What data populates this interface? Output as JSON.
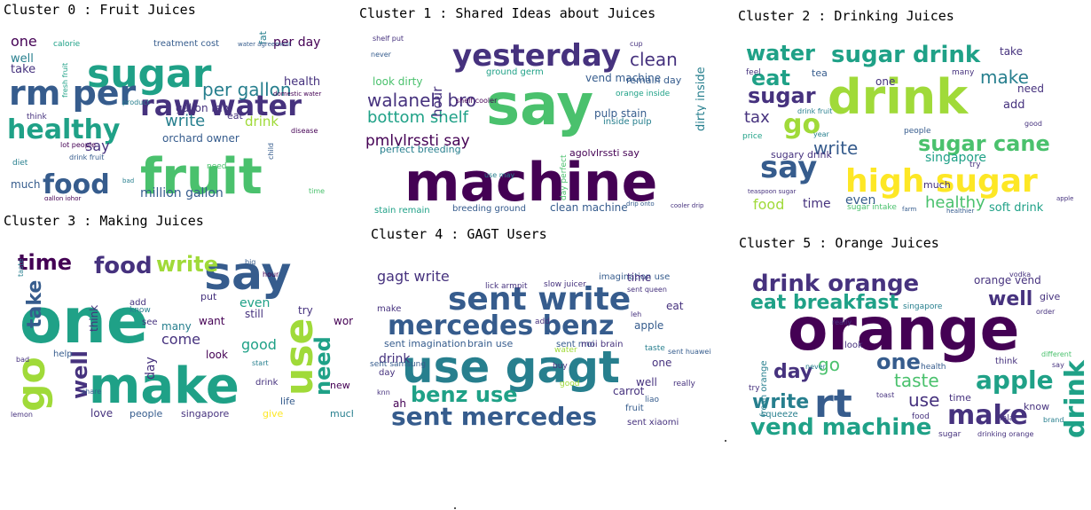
{
  "palette": [
    "#440154",
    "#46327e",
    "#365c8d",
    "#277f8e",
    "#1fa187",
    "#4ac16d",
    "#a0da39",
    "#fde725"
  ],
  "clusters": [
    {
      "title": "Cluster 0 : Fruit Juices",
      "words": [
        {
          "t": "fruit",
          "s": 56,
          "c": 5
        },
        {
          "t": "sugar",
          "s": 44,
          "c": 4
        },
        {
          "t": "rm per",
          "s": 38,
          "c": 2
        },
        {
          "t": "raw water",
          "s": 32,
          "c": 1
        },
        {
          "t": "food",
          "s": 30,
          "c": 2
        },
        {
          "t": "healthy",
          "s": 30,
          "c": 4
        },
        {
          "t": "per gallon",
          "s": 20,
          "c": 3
        },
        {
          "t": "million gallon",
          "s": 14,
          "c": 2
        },
        {
          "t": "write",
          "s": 18,
          "c": 3
        },
        {
          "t": "drink",
          "s": 15,
          "c": 6
        },
        {
          "t": "say",
          "s": 16,
          "c": 1
        },
        {
          "t": "orchard owner",
          "s": 12,
          "c": 2
        },
        {
          "t": "gallon raw",
          "s": 12,
          "c": 1
        },
        {
          "t": "per day",
          "s": 14,
          "c": 0
        },
        {
          "t": "one",
          "s": 16,
          "c": 0
        },
        {
          "t": "health",
          "s": 13,
          "c": 1
        },
        {
          "t": "well",
          "s": 13,
          "c": 3
        },
        {
          "t": "take",
          "s": 13,
          "c": 1
        },
        {
          "t": "much",
          "s": 12,
          "c": 2
        },
        {
          "t": "eat",
          "s": 11,
          "c": 1
        },
        {
          "t": "treatment cost",
          "s": 10,
          "c": 2
        },
        {
          "t": "need",
          "s": 9,
          "c": 5
        },
        {
          "t": "fat",
          "s": 11,
          "c": 3
        },
        {
          "t": "calorie",
          "s": 9,
          "c": 4
        },
        {
          "t": "think",
          "s": 9,
          "c": 1
        },
        {
          "t": "diet",
          "s": 9,
          "c": 3
        },
        {
          "t": "lot people",
          "s": 8,
          "c": 0
        },
        {
          "t": "drink fruit",
          "s": 8,
          "c": 2
        },
        {
          "t": "fresh fruit",
          "s": 8,
          "c": 4
        },
        {
          "t": "product",
          "s": 8,
          "c": 3
        },
        {
          "t": "time",
          "s": 8,
          "c": 5
        },
        {
          "t": "disease",
          "s": 8,
          "c": 0
        },
        {
          "t": "child",
          "s": 8,
          "c": 2
        },
        {
          "t": "water agreement",
          "s": 7,
          "c": 2
        },
        {
          "t": "domestic water",
          "s": 7,
          "c": 0
        },
        {
          "t": "gallon johor",
          "s": 7,
          "c": 0
        },
        {
          "t": "bad",
          "s": 7,
          "c": 3
        }
      ]
    },
    {
      "title": "Cluster 1 : Shared Ideas about Juices",
      "words": [
        {
          "t": "machine",
          "s": 60,
          "c": 0
        },
        {
          "t": "say",
          "s": 64,
          "c": 5
        },
        {
          "t": "yesterday",
          "s": 34,
          "c": 1
        },
        {
          "t": "walaneh bro",
          "s": 20,
          "c": 1
        },
        {
          "t": "bottom shelf",
          "s": 18,
          "c": 4
        },
        {
          "t": "pmlvlrssti say",
          "s": 17,
          "c": 0
        },
        {
          "t": "clean",
          "s": 20,
          "c": 1
        },
        {
          "t": "vend machine",
          "s": 12,
          "c": 2
        },
        {
          "t": "hour",
          "s": 15,
          "c": 1
        },
        {
          "t": "dirty inside",
          "s": 13,
          "c": 3
        },
        {
          "t": "pulp stain",
          "s": 12,
          "c": 2
        },
        {
          "t": "look dirty",
          "s": 12,
          "c": 5
        },
        {
          "t": "clean machine",
          "s": 12,
          "c": 2
        },
        {
          "t": "perfect breeding",
          "s": 11,
          "c": 3
        },
        {
          "t": "agolvlrssti say",
          "s": 11,
          "c": 0
        },
        {
          "t": "remain day",
          "s": 11,
          "c": 2
        },
        {
          "t": "inside pulp",
          "s": 10,
          "c": 3
        },
        {
          "t": "ground germ",
          "s": 10,
          "c": 4
        },
        {
          "t": "orange inside",
          "s": 9,
          "c": 4
        },
        {
          "t": "stain remain",
          "s": 10,
          "c": 4
        },
        {
          "t": "breeding ground",
          "s": 10,
          "c": 2
        },
        {
          "t": "day perfect",
          "s": 9,
          "c": 5
        },
        {
          "t": "shelf put",
          "s": 8,
          "c": 1
        },
        {
          "t": "cup",
          "s": 8,
          "c": 1
        },
        {
          "t": "shelf cooler",
          "s": 8,
          "c": 0
        },
        {
          "t": "never",
          "s": 8,
          "c": 2
        },
        {
          "t": "use may",
          "s": 8,
          "c": 3
        },
        {
          "t": "cooler drip",
          "s": 7,
          "c": 1
        },
        {
          "t": "drip onto",
          "s": 7,
          "c": 2
        }
      ]
    },
    {
      "title": "Cluster 2 : Drinking Juices",
      "words": [
        {
          "t": "drink",
          "s": 54,
          "c": 6
        },
        {
          "t": "high sugar",
          "s": 36,
          "c": 7
        },
        {
          "t": "sugar drink",
          "s": 26,
          "c": 4
        },
        {
          "t": "sugar cane",
          "s": 24,
          "c": 5
        },
        {
          "t": "water",
          "s": 24,
          "c": 4
        },
        {
          "t": "say",
          "s": 34,
          "c": 2
        },
        {
          "t": "go",
          "s": 30,
          "c": 6
        },
        {
          "t": "sugar",
          "s": 24,
          "c": 1
        },
        {
          "t": "eat",
          "s": 24,
          "c": 4
        },
        {
          "t": "write",
          "s": 20,
          "c": 2
        },
        {
          "t": "make",
          "s": 20,
          "c": 3
        },
        {
          "t": "healthy",
          "s": 18,
          "c": 5
        },
        {
          "t": "tax",
          "s": 18,
          "c": 1
        },
        {
          "t": "singapore",
          "s": 14,
          "c": 4
        },
        {
          "t": "food",
          "s": 16,
          "c": 6
        },
        {
          "t": "time",
          "s": 14,
          "c": 1
        },
        {
          "t": "soft drink",
          "s": 13,
          "c": 4
        },
        {
          "t": "even",
          "s": 14,
          "c": 2
        },
        {
          "t": "add",
          "s": 13,
          "c": 1
        },
        {
          "t": "need",
          "s": 12,
          "c": 1
        },
        {
          "t": "sugary drink",
          "s": 11,
          "c": 1
        },
        {
          "t": "one",
          "s": 12,
          "c": 1
        },
        {
          "t": "take",
          "s": 12,
          "c": 1
        },
        {
          "t": "much",
          "s": 11,
          "c": 1
        },
        {
          "t": "tea",
          "s": 11,
          "c": 2
        },
        {
          "t": "sugar intake",
          "s": 9,
          "c": 5
        },
        {
          "t": "price",
          "s": 9,
          "c": 4
        },
        {
          "t": "people",
          "s": 9,
          "c": 2
        },
        {
          "t": "drink fruit",
          "s": 8,
          "c": 3
        },
        {
          "t": "good",
          "s": 8,
          "c": 1
        },
        {
          "t": "try",
          "s": 9,
          "c": 1
        },
        {
          "t": "year",
          "s": 8,
          "c": 3
        },
        {
          "t": "feel",
          "s": 9,
          "c": 1
        },
        {
          "t": "many",
          "s": 9,
          "c": 1
        },
        {
          "t": "teaspoon sugar",
          "s": 7,
          "c": 1
        },
        {
          "t": "apple",
          "s": 7,
          "c": 1
        },
        {
          "t": "farm",
          "s": 7,
          "c": 2
        },
        {
          "t": "healthier",
          "s": 7,
          "c": 2
        }
      ]
    },
    {
      "title": "Cluster 3 : Making Juices",
      "words": [
        {
          "t": "one",
          "s": 70,
          "c": 4
        },
        {
          "t": "make",
          "s": 56,
          "c": 4
        },
        {
          "t": "say",
          "s": 52,
          "c": 2
        },
        {
          "t": "use",
          "s": 44,
          "c": 6
        },
        {
          "t": "go",
          "s": 44,
          "c": 6
        },
        {
          "t": "food",
          "s": 26,
          "c": 1
        },
        {
          "t": "time",
          "s": 24,
          "c": 0
        },
        {
          "t": "write",
          "s": 24,
          "c": 6
        },
        {
          "t": "well",
          "s": 24,
          "c": 1
        },
        {
          "t": "take",
          "s": 22,
          "c": 2
        },
        {
          "t": "need",
          "s": 24,
          "c": 4
        },
        {
          "t": "good",
          "s": 16,
          "c": 4
        },
        {
          "t": "come",
          "s": 16,
          "c": 1
        },
        {
          "t": "even",
          "s": 14,
          "c": 4
        },
        {
          "t": "still",
          "s": 12,
          "c": 1
        },
        {
          "t": "day",
          "s": 14,
          "c": 1
        },
        {
          "t": "look",
          "s": 12,
          "c": 0
        },
        {
          "t": "work",
          "s": 12,
          "c": 0
        },
        {
          "t": "think",
          "s": 12,
          "c": 1
        },
        {
          "t": "want",
          "s": 12,
          "c": 0
        },
        {
          "t": "many",
          "s": 12,
          "c": 3
        },
        {
          "t": "love",
          "s": 12,
          "c": 1
        },
        {
          "t": "people",
          "s": 11,
          "c": 2
        },
        {
          "t": "singapore",
          "s": 11,
          "c": 1
        },
        {
          "t": "give",
          "s": 11,
          "c": 7
        },
        {
          "t": "try",
          "s": 12,
          "c": 1
        },
        {
          "t": "put",
          "s": 11,
          "c": 1
        },
        {
          "t": "new",
          "s": 11,
          "c": 0
        },
        {
          "t": "much",
          "s": 11,
          "c": 3
        },
        {
          "t": "life",
          "s": 11,
          "c": 2
        },
        {
          "t": "drink",
          "s": 10,
          "c": 1
        },
        {
          "t": "know",
          "s": 9,
          "c": 3
        },
        {
          "t": "add",
          "s": 10,
          "c": 1
        },
        {
          "t": "see",
          "s": 10,
          "c": 1
        },
        {
          "t": "help",
          "s": 10,
          "c": 2
        },
        {
          "t": "lemon",
          "s": 8,
          "c": 1
        },
        {
          "t": "bad",
          "s": 8,
          "c": 1
        },
        {
          "t": "start",
          "s": 8,
          "c": 3
        },
        {
          "t": "share",
          "s": 8,
          "c": 2
        },
        {
          "t": "taste",
          "s": 8,
          "c": 3
        },
        {
          "t": "big",
          "s": 8,
          "c": 2
        },
        {
          "t": "hour",
          "s": 8,
          "c": 0
        }
      ]
    },
    {
      "title": "Cluster 4 : GAGT Users",
      "words": [
        {
          "t": "use gagt",
          "s": 50,
          "c": 3
        },
        {
          "t": "sent write",
          "s": 36,
          "c": 2
        },
        {
          "t": "mercedes benz",
          "s": 30,
          "c": 2
        },
        {
          "t": "sent mercedes",
          "s": 28,
          "c": 2
        },
        {
          "t": "benz use",
          "s": 24,
          "c": 4
        },
        {
          "t": "gagt write",
          "s": 16,
          "c": 1
        },
        {
          "t": "drink",
          "s": 14,
          "c": 1
        },
        {
          "t": "sent imagination",
          "s": 11,
          "c": 2
        },
        {
          "t": "brain use",
          "s": 11,
          "c": 2
        },
        {
          "t": "sent moi",
          "s": 10,
          "c": 2
        },
        {
          "t": "moi brain",
          "s": 10,
          "c": 1
        },
        {
          "t": "imagination use",
          "s": 10,
          "c": 2
        },
        {
          "t": "time",
          "s": 12,
          "c": 1
        },
        {
          "t": "apple",
          "s": 12,
          "c": 2
        },
        {
          "t": "carrot",
          "s": 12,
          "c": 1
        },
        {
          "t": "well",
          "s": 12,
          "c": 1
        },
        {
          "t": "ah",
          "s": 12,
          "c": 0
        },
        {
          "t": "eat",
          "s": 12,
          "c": 1
        },
        {
          "t": "one",
          "s": 12,
          "c": 1
        },
        {
          "t": "sent xiaomi",
          "s": 10,
          "c": 1
        },
        {
          "t": "fruit",
          "s": 10,
          "c": 2
        },
        {
          "t": "make",
          "s": 10,
          "c": 1
        },
        {
          "t": "day",
          "s": 10,
          "c": 1
        },
        {
          "t": "sent samsung",
          "s": 9,
          "c": 2
        },
        {
          "t": "slow juicer",
          "s": 9,
          "c": 1
        },
        {
          "t": "lick armpit",
          "s": 9,
          "c": 1
        },
        {
          "t": "taste",
          "s": 9,
          "c": 3
        },
        {
          "t": "really",
          "s": 9,
          "c": 1
        },
        {
          "t": "water",
          "s": 9,
          "c": 6
        },
        {
          "t": "liao",
          "s": 9,
          "c": 2
        },
        {
          "t": "add",
          "s": 9,
          "c": 1
        },
        {
          "t": "buy",
          "s": 9,
          "c": 1
        },
        {
          "t": "leh",
          "s": 8,
          "c": 1
        },
        {
          "t": "sent queen",
          "s": 8,
          "c": 1
        },
        {
          "t": "good",
          "s": 9,
          "c": 6
        },
        {
          "t": "knn",
          "s": 8,
          "c": 1
        },
        {
          "t": "sent huawei",
          "s": 8,
          "c": 2
        }
      ]
    },
    {
      "title": "Cluster 5 : Orange Juices",
      "words": [
        {
          "t": "orange",
          "s": 66,
          "c": 0
        },
        {
          "t": "rt",
          "s": 44,
          "c": 2
        },
        {
          "t": "drink orange",
          "s": 26,
          "c": 1
        },
        {
          "t": "make",
          "s": 30,
          "c": 1
        },
        {
          "t": "apple",
          "s": 28,
          "c": 4
        },
        {
          "t": "vend machine",
          "s": 26,
          "c": 4
        },
        {
          "t": "eat breakfast",
          "s": 22,
          "c": 4
        },
        {
          "t": "one",
          "s": 24,
          "c": 2
        },
        {
          "t": "drink",
          "s": 30,
          "c": 4
        },
        {
          "t": "well",
          "s": 22,
          "c": 1
        },
        {
          "t": "day",
          "s": 22,
          "c": 1
        },
        {
          "t": "write",
          "s": 22,
          "c": 3
        },
        {
          "t": "taste",
          "s": 20,
          "c": 5
        },
        {
          "t": "use",
          "s": 20,
          "c": 1
        },
        {
          "t": "go",
          "s": 20,
          "c": 5
        },
        {
          "t": "orange vend",
          "s": 12,
          "c": 1
        },
        {
          "t": "give",
          "s": 11,
          "c": 1
        },
        {
          "t": "fresh orange",
          "s": 10,
          "c": 3
        },
        {
          "t": "know",
          "s": 11,
          "c": 1
        },
        {
          "t": "look",
          "s": 10,
          "c": 1
        },
        {
          "t": "time",
          "s": 11,
          "c": 1
        },
        {
          "t": "squeeze",
          "s": 10,
          "c": 3
        },
        {
          "t": "think",
          "s": 10,
          "c": 1
        },
        {
          "t": "singapore",
          "s": 9,
          "c": 3
        },
        {
          "t": "halal",
          "s": 9,
          "c": 1
        },
        {
          "t": "food",
          "s": 9,
          "c": 1
        },
        {
          "t": "try",
          "s": 9,
          "c": 1
        },
        {
          "t": "sugar",
          "s": 9,
          "c": 1
        },
        {
          "t": "health",
          "s": 9,
          "c": 2
        },
        {
          "t": "drinking orange",
          "s": 8,
          "c": 1
        },
        {
          "t": "toast",
          "s": 8,
          "c": 1
        },
        {
          "t": "different",
          "s": 8,
          "c": 5
        },
        {
          "t": "really",
          "s": 8,
          "c": 1
        },
        {
          "t": "say",
          "s": 8,
          "c": 1
        },
        {
          "t": "never",
          "s": 8,
          "c": 3
        },
        {
          "t": "order",
          "s": 8,
          "c": 1
        },
        {
          "t": "vodka",
          "s": 8,
          "c": 1
        },
        {
          "t": "brand",
          "s": 8,
          "c": 3
        }
      ]
    }
  ]
}
